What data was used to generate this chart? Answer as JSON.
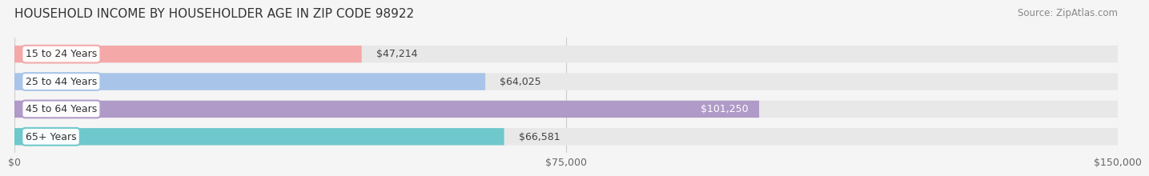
{
  "title": "HOUSEHOLD INCOME BY HOUSEHOLDER AGE IN ZIP CODE 98922",
  "source": "Source: ZipAtlas.com",
  "categories": [
    "15 to 24 Years",
    "25 to 44 Years",
    "45 to 64 Years",
    "65+ Years"
  ],
  "values": [
    47214,
    64025,
    101250,
    66581
  ],
  "bar_colors": [
    "#f4a8a8",
    "#a8c4e8",
    "#b09ac8",
    "#6ec8cc"
  ],
  "label_colors": [
    "#555555",
    "#555555",
    "#ffffff",
    "#555555"
  ],
  "bar_labels": [
    "$47,214",
    "$64,025",
    "$101,250",
    "$66,581"
  ],
  "tag_colors": [
    "#f4a8a8",
    "#a8c4e8",
    "#b09ac8",
    "#6ec8cc"
  ],
  "xlim": [
    0,
    150000
  ],
  "xticks": [
    0,
    75000,
    150000
  ],
  "xticklabels": [
    "$0",
    "$75,000",
    "$150,000"
  ],
  "bg_color": "#f5f5f5",
  "bar_bg_color": "#e8e8e8",
  "title_fontsize": 11,
  "source_fontsize": 8.5,
  "label_fontsize": 9,
  "tick_fontsize": 9
}
